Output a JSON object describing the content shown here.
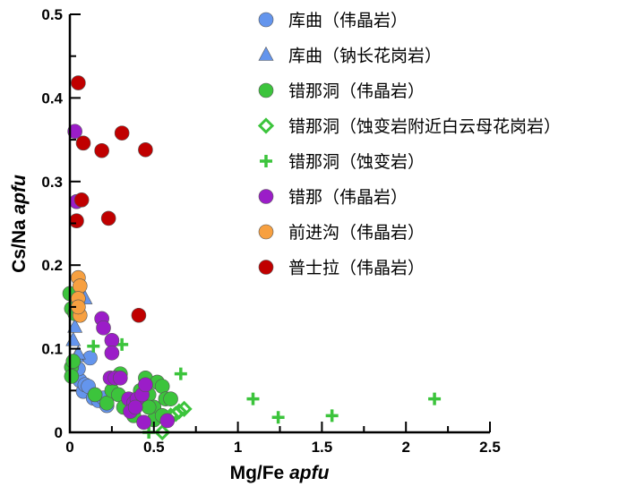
{
  "chart_data": {
    "type": "scatter",
    "title": "",
    "xlabel": "Mg/Fe",
    "xlabel_italic": "apfu",
    "ylabel": "Cs/Na",
    "ylabel_italic": "apfu",
    "xlim": [
      0,
      2.5
    ],
    "ylim": [
      0,
      0.5
    ],
    "xticks": [
      "0",
      "0.5",
      "1",
      "1.5",
      "2",
      "2.5"
    ],
    "yticks": [
      "0",
      "0.1",
      "0.2",
      "0.3",
      "0.4",
      "0.5"
    ],
    "grid": false,
    "legend_position": "top-right",
    "series": [
      {
        "name": "库曲（伟晶岩）",
        "marker": "circle",
        "color": "#6495ED",
        "points": [
          [
            0.03,
            0.067
          ],
          [
            0.06,
            0.062
          ],
          [
            0.08,
            0.049
          ],
          [
            0.12,
            0.089
          ],
          [
            0.14,
            0.041
          ],
          [
            0.17,
            0.038
          ],
          [
            0.2,
            0.041
          ],
          [
            0.09,
            0.057
          ],
          [
            0.05,
            0.076
          ],
          [
            0.22,
            0.032
          ],
          [
            0.11,
            0.055
          ]
        ]
      },
      {
        "name": "库曲（钠长花岗岩）",
        "marker": "triangle",
        "color": "#6495ED",
        "points": [
          [
            0.02,
            0.11
          ],
          [
            0.04,
            0.091
          ],
          [
            0.09,
            0.16
          ],
          [
            0.03,
            0.126
          ],
          [
            0.05,
            0.094
          ]
        ]
      },
      {
        "name": "错那洞（伟晶岩）",
        "marker": "circle",
        "color": "#3CC43C",
        "points": [
          [
            0.0,
            0.166
          ],
          [
            0.01,
            0.148
          ],
          [
            0.03,
            0.142
          ],
          [
            0.01,
            0.078
          ],
          [
            0.01,
            0.067
          ],
          [
            0.02,
            0.085
          ],
          [
            0.15,
            0.045
          ],
          [
            0.22,
            0.035
          ],
          [
            0.25,
            0.05
          ],
          [
            0.27,
            0.065
          ],
          [
            0.29,
            0.045
          ],
          [
            0.32,
            0.03
          ],
          [
            0.38,
            0.02
          ],
          [
            0.45,
            0.065
          ],
          [
            0.47,
            0.045
          ],
          [
            0.5,
            0.03
          ],
          [
            0.52,
            0.06
          ],
          [
            0.55,
            0.055
          ],
          [
            0.57,
            0.04
          ],
          [
            0.6,
            0.04
          ],
          [
            0.5,
            0.015
          ],
          [
            0.55,
            0.02
          ],
          [
            0.47,
            0.03
          ],
          [
            0.3,
            0.07
          ],
          [
            0.42,
            0.05
          ]
        ]
      },
      {
        "name": "错那洞（蚀变岩附近白云母花岗岩）",
        "marker": "diamond-open",
        "color": "#3CC43C",
        "points": [
          [
            0.55,
            0.0
          ],
          [
            0.6,
            0.02
          ],
          [
            0.65,
            0.025
          ],
          [
            0.68,
            0.028
          ],
          [
            0.63,
            0.022
          ]
        ]
      },
      {
        "name": "错那洞（蚀变岩）",
        "marker": "plus",
        "color": "#3CC43C",
        "points": [
          [
            0.14,
            0.103
          ],
          [
            0.31,
            0.105
          ],
          [
            0.66,
            0.07
          ],
          [
            1.09,
            0.04
          ],
          [
            1.24,
            0.018
          ],
          [
            1.56,
            0.02
          ],
          [
            2.17,
            0.04
          ],
          [
            0.47,
            0.0
          ]
        ]
      },
      {
        "name": "错那（伟晶岩）",
        "marker": "circle",
        "color": "#9B1DC8",
        "points": [
          [
            0.03,
            0.36
          ],
          [
            0.04,
            0.276
          ],
          [
            0.19,
            0.136
          ],
          [
            0.2,
            0.125
          ],
          [
            0.25,
            0.11
          ],
          [
            0.25,
            0.095
          ],
          [
            0.24,
            0.065
          ],
          [
            0.27,
            0.065
          ],
          [
            0.3,
            0.065
          ],
          [
            0.35,
            0.04
          ],
          [
            0.38,
            0.035
          ],
          [
            0.4,
            0.04
          ],
          [
            0.43,
            0.045
          ],
          [
            0.45,
            0.057
          ],
          [
            0.36,
            0.025
          ],
          [
            0.44,
            0.012
          ],
          [
            0.58,
            0.014
          ],
          [
            0.39,
            0.03
          ]
        ]
      },
      {
        "name": "前进沟（伟晶岩）",
        "marker": "circle",
        "color": "#F7A040",
        "points": [
          [
            0.05,
            0.185
          ],
          [
            0.06,
            0.175
          ],
          [
            0.05,
            0.16
          ],
          [
            0.06,
            0.14
          ],
          [
            0.05,
            0.15
          ]
        ]
      },
      {
        "name": "普士拉（伟晶岩）",
        "marker": "circle",
        "color": "#C00000",
        "points": [
          [
            0.05,
            0.418
          ],
          [
            0.08,
            0.346
          ],
          [
            0.07,
            0.278
          ],
          [
            0.04,
            0.253
          ],
          [
            0.19,
            0.337
          ],
          [
            0.31,
            0.358
          ],
          [
            0.23,
            0.256
          ],
          [
            0.45,
            0.338
          ],
          [
            0.41,
            0.14
          ]
        ]
      }
    ]
  }
}
